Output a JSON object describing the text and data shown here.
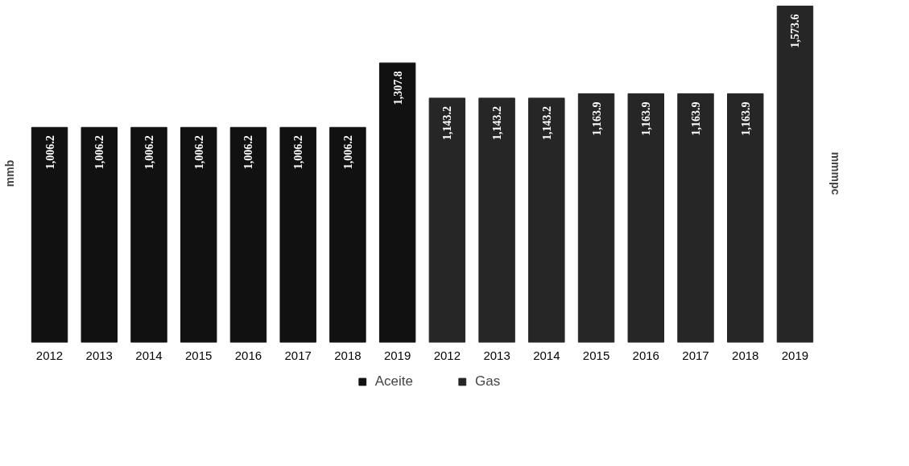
{
  "chart_data": {
    "type": "bar",
    "ylabel": "mmb",
    "y2label": "mmmpc",
    "categories": [
      "2012",
      "2013",
      "2014",
      "2015",
      "2016",
      "2017",
      "2018",
      "2019",
      "2012",
      "2013",
      "2014",
      "2015",
      "2016",
      "2017",
      "2018",
      "2019"
    ],
    "series": [
      {
        "name": "Aceite",
        "color": "#111111",
        "values": [
          1006.2,
          1006.2,
          1006.2,
          1006.2,
          1006.2,
          1006.2,
          1006.2,
          1307.8,
          null,
          null,
          null,
          null,
          null,
          null,
          null,
          null
        ],
        "value_labels": [
          "1,006.2",
          "1,006.2",
          "1,006.2",
          "1,006.2",
          "1,006.2",
          "1,006.2",
          "1,006.2",
          "1,307.8",
          null,
          null,
          null,
          null,
          null,
          null,
          null,
          null
        ]
      },
      {
        "name": "Gas",
        "color": "#262626",
        "values": [
          null,
          null,
          null,
          null,
          null,
          null,
          null,
          null,
          1143.2,
          1143.2,
          1143.2,
          1163.9,
          1163.9,
          1163.9,
          1163.9,
          1573.6
        ],
        "value_labels": [
          null,
          null,
          null,
          null,
          null,
          null,
          null,
          null,
          "1,143.2",
          "1,143.2",
          "1,143.2",
          "1,163.9",
          "1,163.9",
          "1,163.9",
          "1,163.9",
          "1,573.6"
        ]
      }
    ],
    "tick_labels": "x",
    "legend": "bottom"
  }
}
